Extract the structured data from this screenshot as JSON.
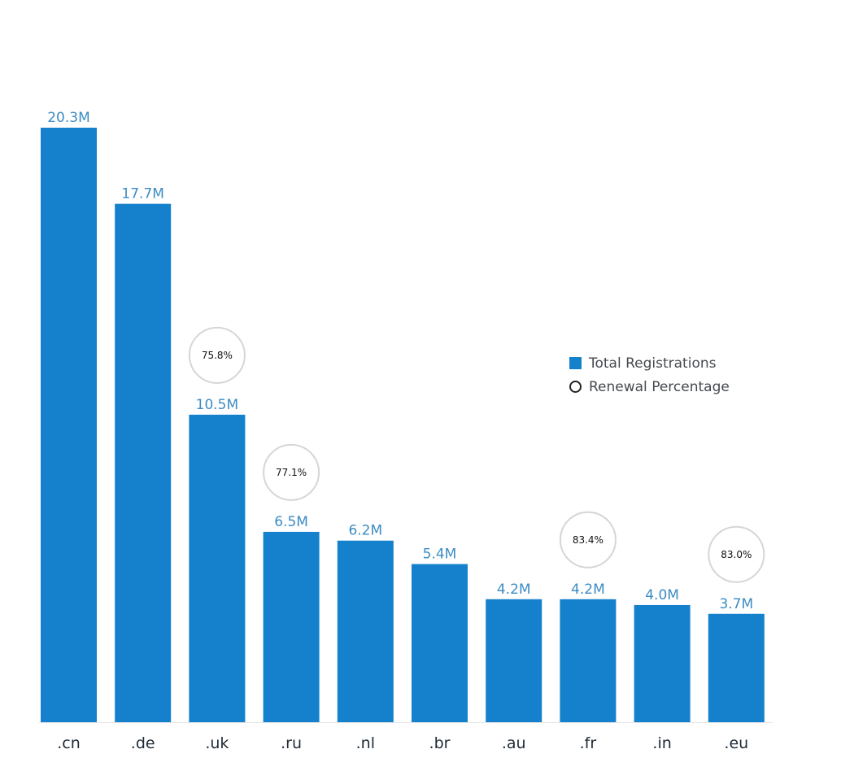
{
  "chart_data": {
    "type": "bar",
    "categories": [
      ".cn",
      ".de",
      ".uk",
      ".ru",
      ".nl",
      ".br",
      ".au",
      ".fr",
      ".in",
      ".eu"
    ],
    "series": [
      {
        "name": "Total Registrations",
        "values": [
          20.3,
          17.7,
          10.5,
          6.5,
          6.2,
          5.4,
          4.2,
          4.2,
          4.0,
          3.7
        ],
        "labels": [
          "20.3M",
          "17.7M",
          "10.5M",
          "6.5M",
          "6.2M",
          "5.4M",
          "4.2M",
          "4.2M",
          "4.0M",
          "3.7M"
        ]
      },
      {
        "name": "Renewal Percentage",
        "values": [
          null,
          null,
          75.8,
          77.1,
          null,
          null,
          null,
          83.4,
          null,
          83.0
        ],
        "labels": [
          "",
          "",
          "75.8%",
          "77.1%",
          "",
          "",
          "",
          "83.4%",
          "",
          "83.0%"
        ]
      }
    ],
    "ylim": [
      0,
      20.3
    ],
    "grid": false,
    "legend_position": "right",
    "colors": {
      "bar": "#1581cc",
      "value_label": "#3d8cc4",
      "tick_label": "#1f2a36",
      "circle_border": "#d6d6d6"
    }
  },
  "legend": {
    "items": [
      {
        "label": "Total Registrations",
        "marker": "square"
      },
      {
        "label": "Renewal Percentage",
        "marker": "circle"
      }
    ]
  }
}
